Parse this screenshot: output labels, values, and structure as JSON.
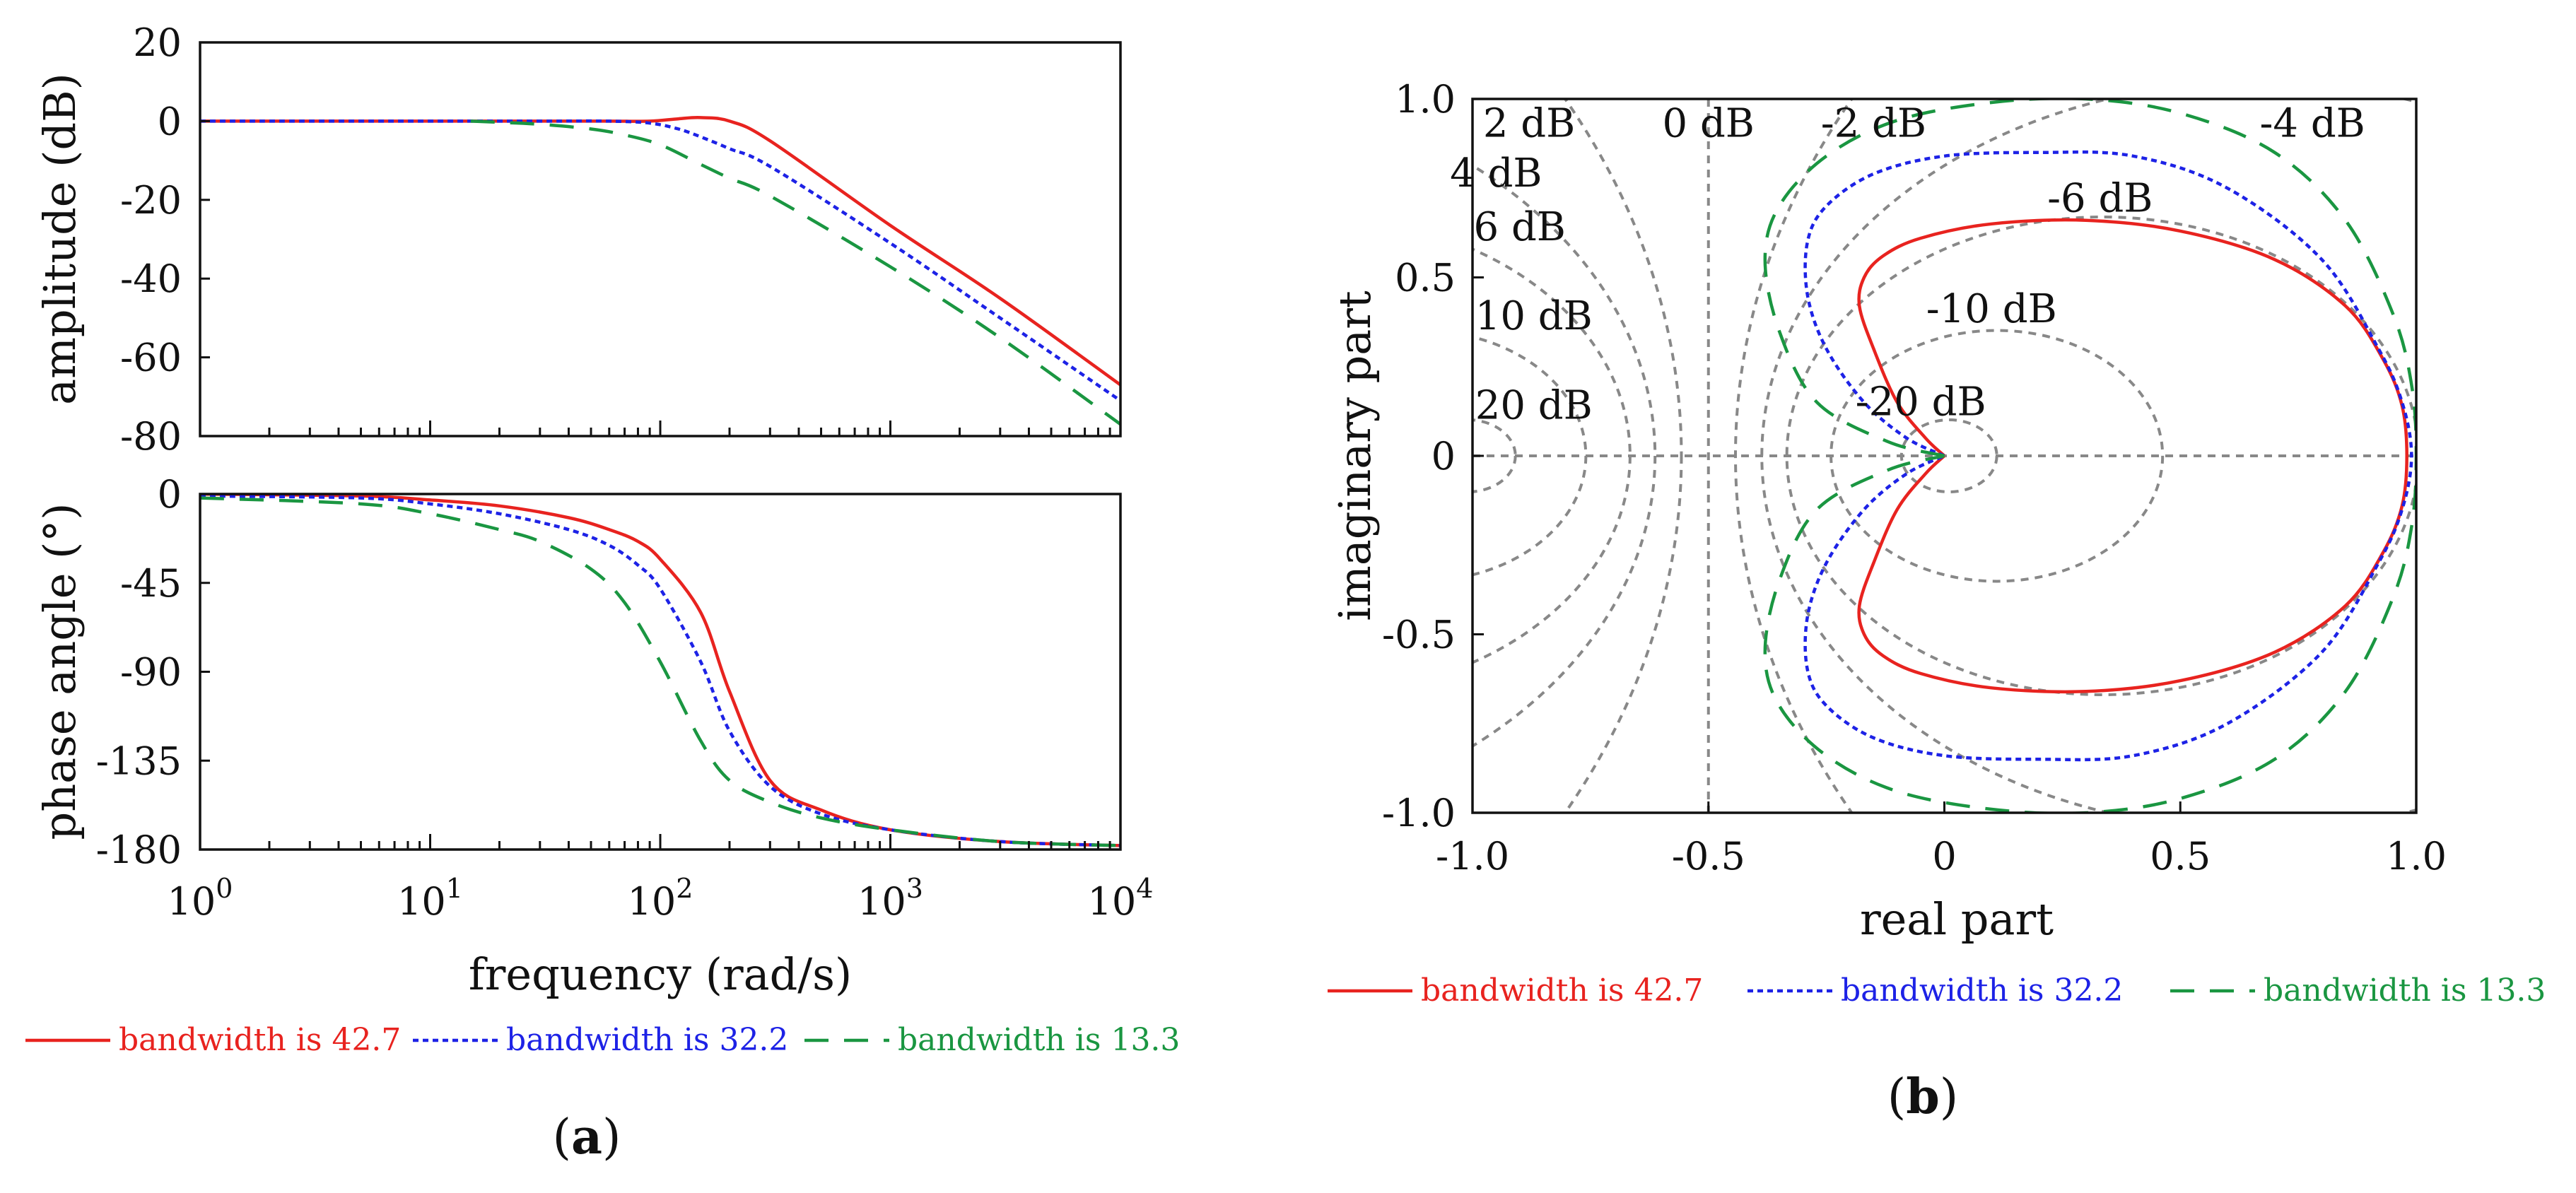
{
  "series_styles": [
    {
      "name": "bandwidth is 42.7",
      "color": "#e8231f",
      "dash": ""
    },
    {
      "name": "bandwidth is 32.2",
      "color": "#1d22e6",
      "dash": "8 6"
    },
    {
      "name": "bandwidth is 13.3",
      "color": "#1a9641",
      "dash": "34 22"
    }
  ],
  "panel_labels": {
    "a": "a",
    "b": "b"
  },
  "chart_data": [
    {
      "id": "amplitude",
      "type": "line",
      "title": "",
      "xscale": "log",
      "xlim": [
        1,
        10000
      ],
      "ylim": [
        -80,
        20
      ],
      "yticks": [
        20,
        0,
        -20,
        -40,
        -60,
        -80
      ],
      "ytick_labels": [
        "20",
        "0",
        "-20",
        "-40",
        "-60",
        "-80"
      ],
      "ylabel": "amplitude (dB)",
      "series": [
        {
          "name": "bandwidth is 42.7",
          "x": [
            1,
            10,
            30,
            60,
            90,
            120,
            150,
            200,
            300,
            1000,
            3000,
            10000
          ],
          "y": [
            0,
            0,
            0,
            0,
            0,
            0.6,
            0.9,
            0,
            -5,
            -26.5,
            -45,
            -67
          ]
        },
        {
          "name": "bandwidth is 32.2",
          "x": [
            1,
            10,
            30,
            60,
            90,
            120,
            150,
            200,
            300,
            1000,
            3000,
            10000
          ],
          "y": [
            0,
            0,
            0,
            0,
            -0.5,
            -2,
            -4,
            -7,
            -11.5,
            -31,
            -50,
            -71
          ]
        },
        {
          "name": "bandwidth is 13.3",
          "x": [
            15,
            20,
            30,
            50,
            70,
            100,
            150,
            200,
            300,
            1000,
            3000,
            10000
          ],
          "y": [
            0,
            -0.3,
            -0.8,
            -2,
            -3.5,
            -6,
            -11,
            -14.5,
            -19,
            -37,
            -55,
            -77
          ]
        }
      ]
    },
    {
      "id": "phase",
      "type": "line",
      "title": "",
      "xscale": "log",
      "xlim": [
        1,
        10000
      ],
      "ylim": [
        -180,
        0
      ],
      "xticks": [
        1,
        10,
        100,
        1000,
        10000
      ],
      "xtick_bases": [
        "10",
        "10",
        "10",
        "10",
        "10"
      ],
      "xtick_exponents": [
        "0",
        "1",
        "2",
        "3",
        "4"
      ],
      "yticks": [
        0,
        -45,
        -90,
        -135,
        -180
      ],
      "ytick_labels": [
        "0",
        "-45",
        "-90",
        "-135",
        "-180"
      ],
      "xlabel": "frequency (rad/s)",
      "ylabel": "phase angle (°)",
      "series": [
        {
          "name": "bandwidth is 42.7",
          "x": [
            1,
            5,
            10,
            20,
            40,
            60,
            80,
            100,
            150,
            200,
            300,
            500,
            1000,
            3000,
            10000
          ],
          "y": [
            0,
            -1,
            -3,
            -6,
            -12,
            -18,
            -24,
            -33,
            -60,
            -100,
            -145,
            -160,
            -170,
            -176,
            -178
          ]
        },
        {
          "name": "bandwidth is 32.2",
          "x": [
            1,
            5,
            10,
            20,
            40,
            60,
            80,
            100,
            150,
            200,
            300,
            500,
            1000,
            3000,
            10000
          ],
          "y": [
            -1,
            -2,
            -5,
            -10,
            -18,
            -26,
            -36,
            -48,
            -85,
            -120,
            -148,
            -162,
            -170,
            -176,
            -178
          ]
        },
        {
          "name": "bandwidth is 13.3",
          "x": [
            1,
            5,
            10,
            20,
            30,
            50,
            70,
            100,
            150,
            200,
            300,
            500,
            1000,
            3000,
            10000
          ],
          "y": [
            -2,
            -5,
            -10,
            -18,
            -24,
            -38,
            -55,
            -85,
            -125,
            -145,
            -156,
            -164,
            -170,
            -176,
            -178
          ]
        }
      ]
    },
    {
      "id": "nyquist",
      "type": "line",
      "title": "",
      "xlim": [
        -1.0,
        1.0
      ],
      "ylim": [
        -1.0,
        1.0
      ],
      "xticks": [
        -1.0,
        -0.5,
        0,
        0.5,
        1.0
      ],
      "xtick_labels": [
        "-1.0",
        "-0.5",
        "0",
        "0.5",
        "1.0"
      ],
      "yticks": [
        1.0,
        0.5,
        0,
        -0.5,
        -1.0
      ],
      "ytick_labels": [
        "1.0",
        "0.5",
        "0",
        "-0.5",
        "-1.0"
      ],
      "xlabel": "real part",
      "ylabel": "imaginary part",
      "contour_labels": [
        {
          "text": "2 dB",
          "at": [
            -0.88,
            0.93
          ]
        },
        {
          "text": "0 dB",
          "at": [
            -0.5,
            0.93
          ]
        },
        {
          "text": "-2 dB",
          "at": [
            -0.15,
            0.93
          ]
        },
        {
          "text": "-4 dB",
          "at": [
            0.78,
            0.93
          ]
        },
        {
          "text": "4 dB",
          "at": [
            -0.95,
            0.79
          ]
        },
        {
          "text": "6 dB",
          "at": [
            -0.9,
            0.64
          ]
        },
        {
          "text": "-6 dB",
          "at": [
            0.33,
            0.72
          ]
        },
        {
          "text": "10 dB",
          "at": [
            -0.87,
            0.39
          ]
        },
        {
          "text": "-10 dB",
          "at": [
            0.1,
            0.41
          ]
        },
        {
          "text": "20 dB",
          "at": [
            -0.87,
            0.14
          ]
        },
        {
          "text": "-20 dB",
          "at": [
            -0.05,
            0.15
          ]
        }
      ],
      "series": [
        {
          "name": "bandwidth is 42.7",
          "x": [
            0,
            -0.04,
            -0.1,
            -0.15,
            -0.18,
            -0.17,
            -0.13,
            -0.05,
            0.1,
            0.3,
            0.5,
            0.7,
            0.85,
            0.93,
            0.97,
            0.98
          ],
          "y": [
            0,
            0.05,
            0.15,
            0.3,
            0.42,
            0.5,
            0.56,
            0.61,
            0.65,
            0.66,
            0.63,
            0.55,
            0.42,
            0.27,
            0.14,
            0
          ]
        },
        {
          "name": "bandwidth is 32.2",
          "x": [
            0,
            -0.08,
            -0.17,
            -0.25,
            -0.29,
            -0.29,
            -0.25,
            -0.15,
            0,
            0.2,
            0.4,
            0.6,
            0.8,
            0.92,
            0.97,
            0.99
          ],
          "y": [
            0,
            0.05,
            0.15,
            0.3,
            0.45,
            0.6,
            0.7,
            0.79,
            0.84,
            0.85,
            0.84,
            0.75,
            0.55,
            0.3,
            0.15,
            0
          ]
        },
        {
          "name": "bandwidth is 13.3",
          "x": [
            0,
            -0.12,
            -0.27,
            -0.35,
            -0.38,
            -0.35,
            -0.25,
            -0.1,
            0.1,
            0.3,
            0.5,
            0.7,
            0.85,
            0.95,
            0.99,
            1.0
          ],
          "y": [
            0,
            0.04,
            0.15,
            0.35,
            0.55,
            0.7,
            0.84,
            0.94,
            0.99,
            1.0,
            0.96,
            0.85,
            0.66,
            0.4,
            0.2,
            0
          ]
        }
      ]
    }
  ]
}
